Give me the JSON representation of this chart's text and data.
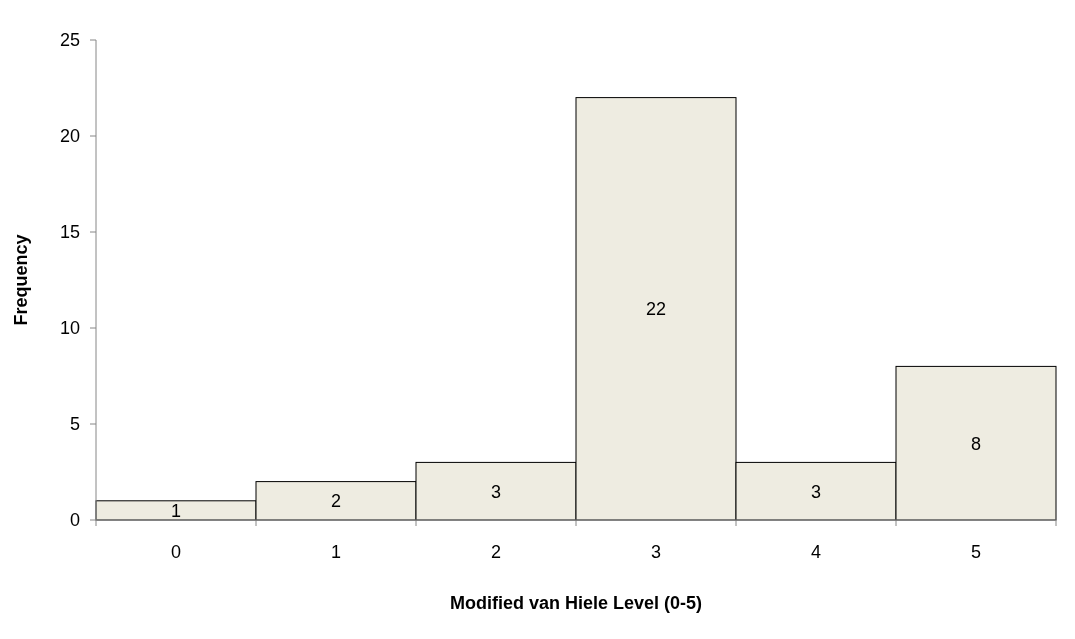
{
  "chart_data": {
    "type": "bar",
    "xlabel": "Modified van Hiele Level (0-5)",
    "ylabel": "Frequency",
    "categories": [
      "0",
      "1",
      "2",
      "3",
      "4",
      "5"
    ],
    "values": [
      1,
      2,
      3,
      22,
      3,
      8
    ],
    "color": "#eeece1",
    "ylim": [
      0,
      25
    ],
    "yticks": [
      0,
      5,
      10,
      15,
      20,
      25
    ],
    "data_labels": true
  }
}
